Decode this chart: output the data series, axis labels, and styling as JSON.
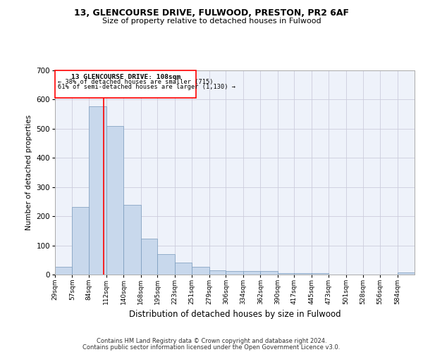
{
  "title1": "13, GLENCOURSE DRIVE, FULWOOD, PRESTON, PR2 6AF",
  "title2": "Size of property relative to detached houses in Fulwood",
  "xlabel": "Distribution of detached houses by size in Fulwood",
  "ylabel": "Number of detached properties",
  "footer1": "Contains HM Land Registry data © Crown copyright and database right 2024.",
  "footer2": "Contains public sector information licensed under the Open Government Licence v3.0.",
  "annotation_line1": "13 GLENCOURSE DRIVE: 108sqm",
  "annotation_line2": "← 38% of detached houses are smaller (715)",
  "annotation_line3": "61% of semi-detached houses are larger (1,130) →",
  "property_size_sqm": 108,
  "bar_color": "#c8d8ec",
  "bar_edge_color": "#7799bb",
  "vline_color": "red",
  "annotation_box_color": "red",
  "background_color": "#eef2fa",
  "grid_color": "#ccccdd",
  "categories": [
    "29sqm",
    "57sqm",
    "84sqm",
    "112sqm",
    "140sqm",
    "168sqm",
    "195sqm",
    "223sqm",
    "251sqm",
    "279sqm",
    "306sqm",
    "334sqm",
    "362sqm",
    "390sqm",
    "417sqm",
    "445sqm",
    "473sqm",
    "501sqm",
    "528sqm",
    "556sqm",
    "584sqm"
  ],
  "values": [
    27,
    231,
    578,
    510,
    240,
    123,
    71,
    41,
    26,
    15,
    13,
    11,
    11,
    6,
    6,
    6,
    0,
    0,
    0,
    0,
    7
  ],
  "bin_edges": [
    29,
    57,
    84,
    112,
    140,
    168,
    195,
    223,
    251,
    279,
    306,
    334,
    362,
    390,
    417,
    445,
    473,
    501,
    528,
    556,
    584,
    612
  ],
  "ylim": [
    0,
    700
  ],
  "yticks": [
    0,
    100,
    200,
    300,
    400,
    500,
    600,
    700
  ],
  "figsize": [
    6.0,
    5.0
  ],
  "dpi": 100
}
